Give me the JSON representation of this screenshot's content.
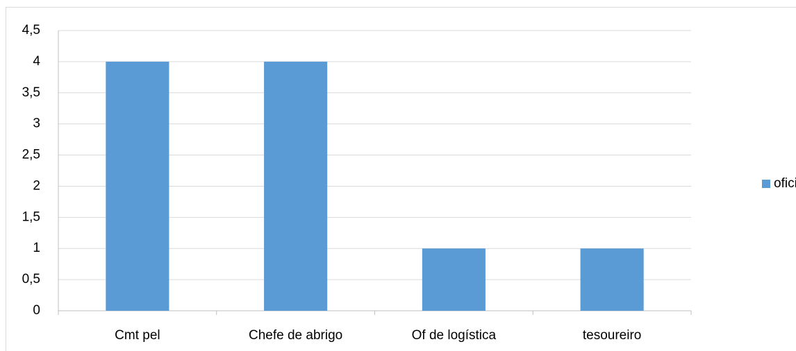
{
  "chart_data": {
    "type": "bar",
    "categories": [
      "Cmt pel",
      "Chefe de abrigo",
      "Of de logística",
      "tesoureiro"
    ],
    "series": [
      {
        "name": "oficiais",
        "color": "#5b9bd5",
        "values": [
          4,
          4,
          1,
          1
        ]
      }
    ],
    "ylim": [
      0,
      4.5
    ],
    "yticks": [
      0,
      {
        "value": 0.5,
        "label": "0,5"
      },
      1,
      {
        "value": 1.5,
        "label": "1,5"
      },
      2,
      {
        "value": 2.5,
        "label": "2,5"
      },
      3,
      {
        "value": 3.5,
        "label": "3,5"
      },
      4,
      {
        "value": 4.5,
        "label": "4,5"
      }
    ],
    "grid": true,
    "legend": "right"
  }
}
